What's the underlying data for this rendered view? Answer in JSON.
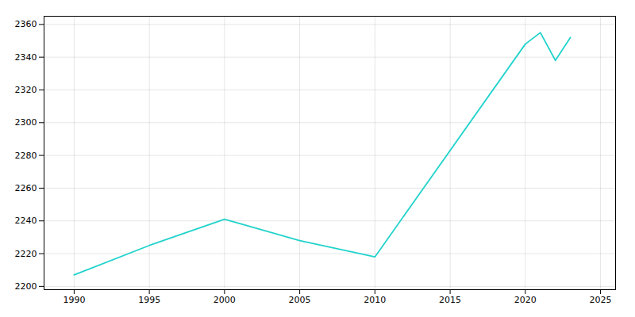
{
  "chart_data": {
    "type": "line",
    "x": [
      1990,
      1995,
      2000,
      2005,
      2010,
      2020,
      2021,
      2022,
      2023
    ],
    "values": [
      2207,
      2225,
      2241,
      2228,
      2218,
      2348,
      2355,
      2338,
      2352
    ],
    "color": "#22d3cc",
    "xlim": [
      1988,
      2026
    ],
    "ylim": [
      2198,
      2365
    ],
    "xticks": [
      1990,
      1995,
      2000,
      2005,
      2010,
      2015,
      2020,
      2025
    ],
    "yticks": [
      2200,
      2220,
      2240,
      2260,
      2280,
      2300,
      2320,
      2340,
      2360
    ],
    "grid": true
  }
}
